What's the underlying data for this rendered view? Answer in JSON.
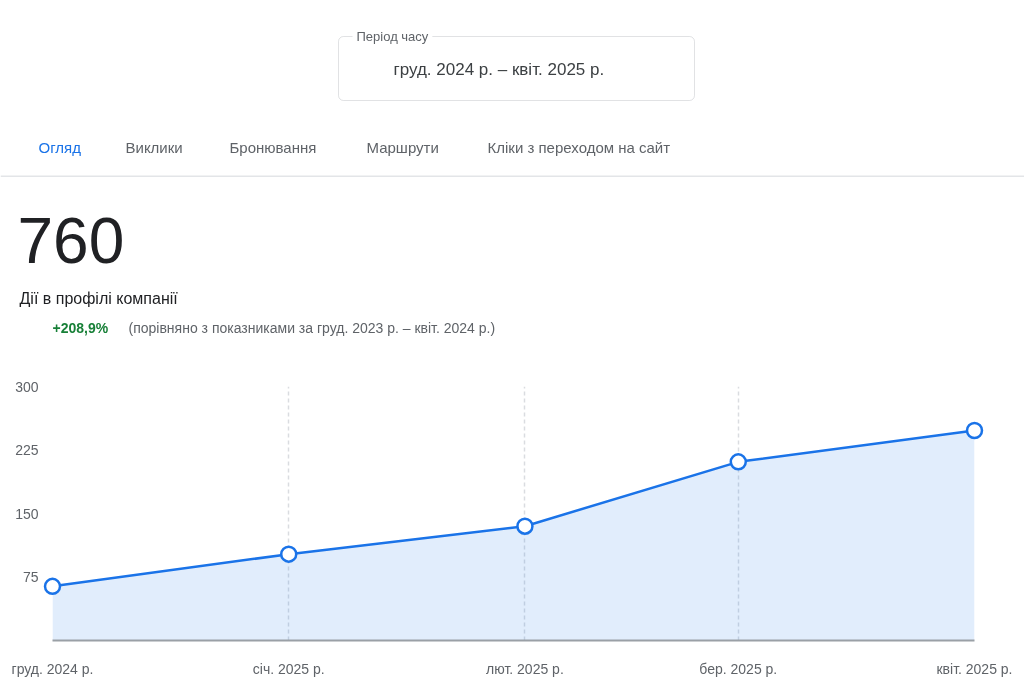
{
  "chart_data": {
    "type": "area",
    "title": "760",
    "subtitle": "Дії в профілі компанії",
    "annotations": [
      "Період часу",
      "груд. 2024 р. – квіт. 2025 р.",
      "Огляд",
      "Виклики",
      "Бронювання",
      "Маршрути",
      "Кліки з переходом на сайт",
      "+208,9%",
      "(порівняно з показниками за груд. 2023 р. – квіт. 2024 р.)"
    ],
    "x": [
      "2024-12",
      "2025-01",
      "2025-02",
      "2025-03",
      "2025-04"
    ],
    "series": [
      {
        "color": "#1a73e8",
        "values": [
          64,
          102,
          135,
          211,
          248
        ]
      }
    ],
    "xlim": [
      "2024-12",
      "2025-04"
    ],
    "xticks": [
      {
        "value": "2024-12",
        "label": "груд. 2024 р."
      },
      {
        "value": "2025-01",
        "label": "січ. 2025 р."
      },
      {
        "value": "2025-02",
        "label": "лют. 2025 р."
      },
      {
        "value": "2025-03",
        "label": "бер. 2025 р."
      },
      {
        "value": "2025-04",
        "label": "квіт. 2025 р."
      }
    ],
    "ylim": [
      0,
      300
    ],
    "yticks": [
      75,
      150,
      225,
      300
    ],
    "grid": "x",
    "marker": "circle",
    "line_style": "solid"
  }
}
